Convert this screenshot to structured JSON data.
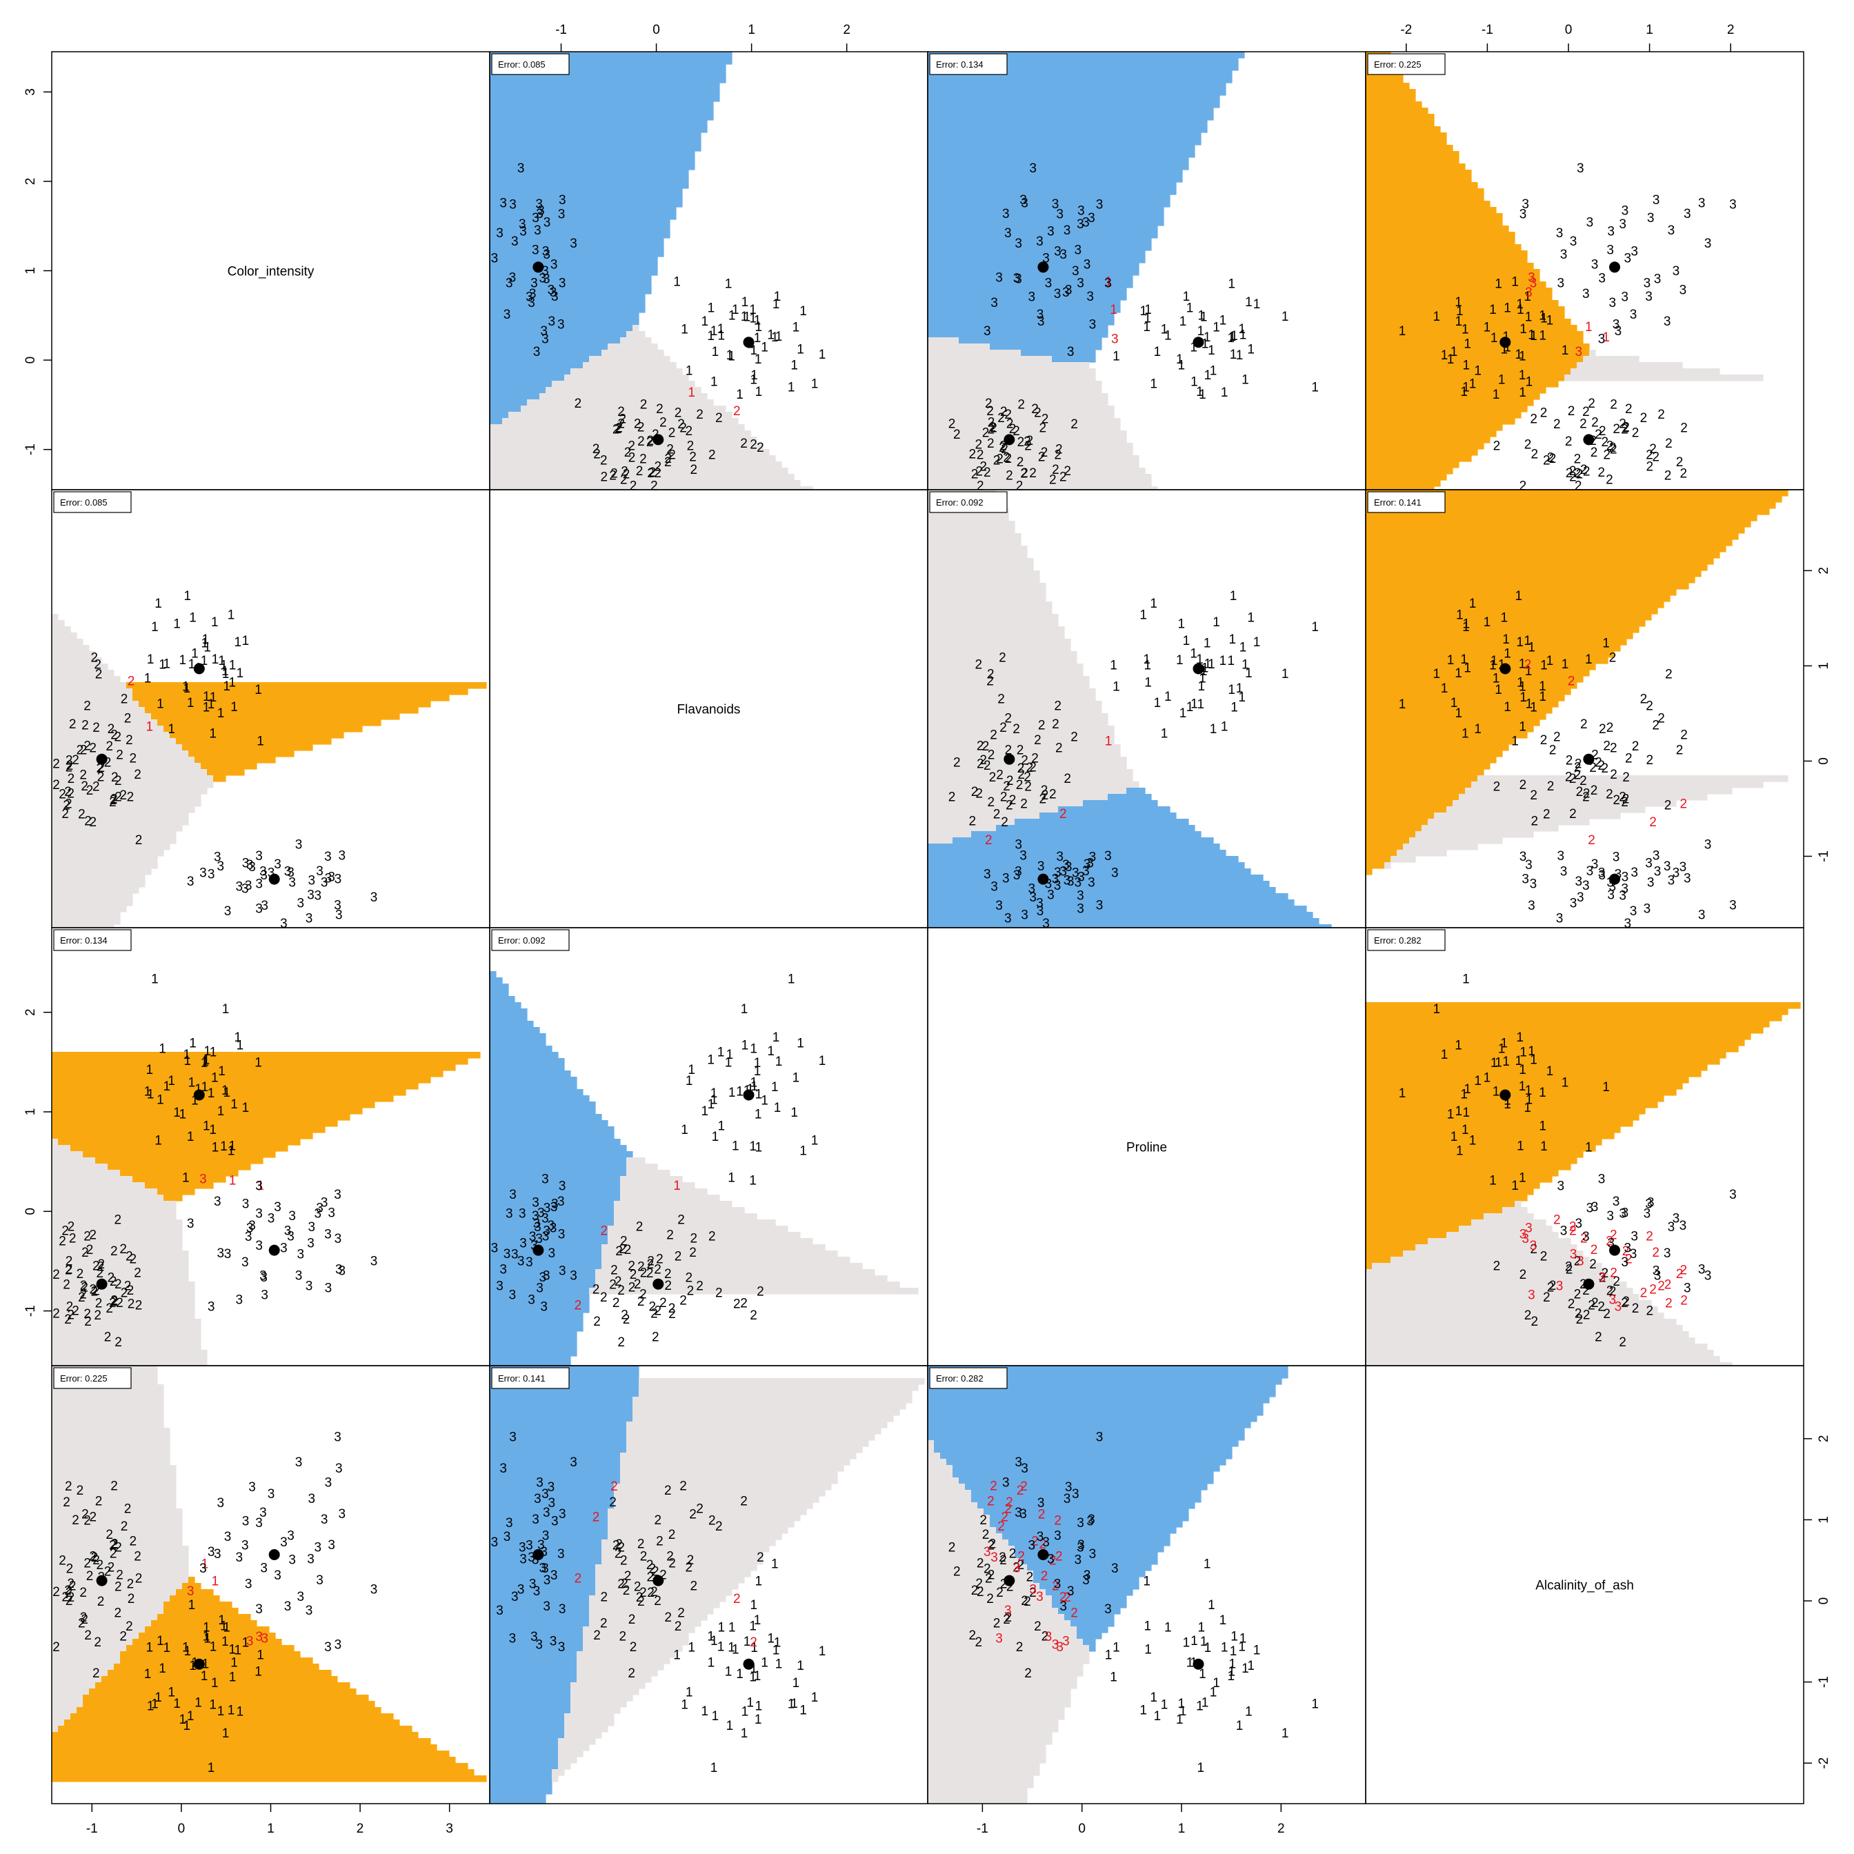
{
  "chart_data": {
    "type": "scatter",
    "variables": [
      "Color_intensity",
      "Flavanoids",
      "Proline",
      "Alcalinity_of_ash"
    ],
    "ranges": {
      "Color_intensity": [
        -1.45,
        3.45
      ],
      "Flavanoids": [
        -1.75,
        2.85
      ],
      "Proline": [
        -1.55,
        2.85
      ],
      "Alcalinity_of_ash": [
        -2.5,
        2.9
      ]
    },
    "ticks": {
      "Color_intensity": [
        "-1",
        "0",
        "1",
        "2",
        "3"
      ],
      "Flavanoids": [
        "-1",
        "0",
        "1",
        "2"
      ],
      "Proline": [
        "-1",
        "0",
        "1",
        "2"
      ],
      "Alcalinity_of_ash": [
        "-2",
        "-1",
        "0",
        "1",
        "2"
      ]
    },
    "classes": [
      "1",
      "2",
      "3"
    ],
    "region_colors": {
      "1": "#f9a90f",
      "2": "#e8e3e3",
      "3": "#6aaee8"
    },
    "misclassified_color": "#e8141f",
    "point_color": "#000000",
    "centroids": {
      "1": {
        "Color_intensity": 0.2,
        "Flavanoids": 0.97,
        "Proline": 1.17,
        "Alcalinity_of_ash": -0.78
      },
      "2": {
        "Color_intensity": -0.89,
        "Flavanoids": 0.02,
        "Proline": -0.73,
        "Alcalinity_of_ash": 0.25
      },
      "3": {
        "Color_intensity": 1.04,
        "Flavanoids": -1.24,
        "Proline": -0.39,
        "Alcalinity_of_ash": 0.57
      }
    },
    "errors": [
      {
        "row": 0,
        "col": 1,
        "label": "Error: 0.085"
      },
      {
        "row": 0,
        "col": 2,
        "label": "Error: 0.134"
      },
      {
        "row": 0,
        "col": 3,
        "label": "Error: 0.225"
      },
      {
        "row": 1,
        "col": 0,
        "label": "Error: 0.085"
      },
      {
        "row": 1,
        "col": 2,
        "label": "Error: 0.092"
      },
      {
        "row": 1,
        "col": 3,
        "label": "Error: 0.141"
      },
      {
        "row": 2,
        "col": 0,
        "label": "Error: 0.134"
      },
      {
        "row": 2,
        "col": 1,
        "label": "Error: 0.092"
      },
      {
        "row": 2,
        "col": 3,
        "label": "Error: 0.282"
      },
      {
        "row": 3,
        "col": 0,
        "label": "Error: 0.225"
      },
      {
        "row": 3,
        "col": 1,
        "label": "Error: 0.141"
      },
      {
        "row": 3,
        "col": 2,
        "label": "Error: 0.282"
      }
    ],
    "legend_position": "top-left of each panel",
    "grid": false
  }
}
